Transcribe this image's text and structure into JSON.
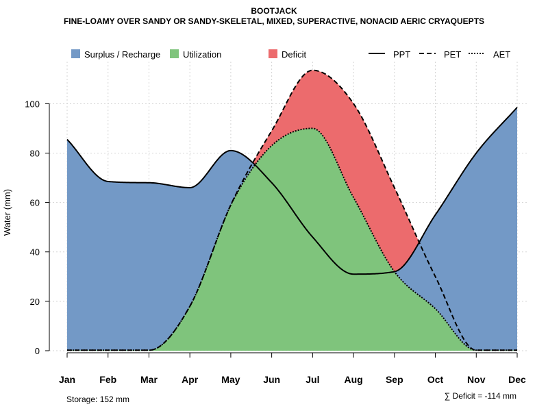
{
  "titles": {
    "main": "BOOTJACK",
    "subtitle": "FINE-LOAMY OVER SANDY OR SANDY-SKELETAL, MIXED, SUPERACTIVE, NONACID AERIC CRYAQUEPTS"
  },
  "colors": {
    "surplus": "#7399c6",
    "utilization": "#7fc47c",
    "deficit": "#ec6b6d",
    "grid": "#d3d3d3"
  },
  "chart_data": {
    "type": "area",
    "title": "BOOTJACK",
    "ylabel": "Water (mm)",
    "xlabel": "",
    "ylim": [
      0,
      117
    ],
    "yticks": [
      0,
      20,
      40,
      60,
      80,
      100
    ],
    "grid": true,
    "categories": [
      "Jan",
      "Feb",
      "Mar",
      "Apr",
      "May",
      "Jun",
      "Jul",
      "Aug",
      "Sep",
      "Oct",
      "Nov",
      "Dec"
    ],
    "series": [
      {
        "name": "PPT",
        "values": [
          85.5,
          68.5,
          68,
          66,
          81,
          68,
          46,
          31,
          32,
          55,
          80,
          98.5
        ]
      },
      {
        "name": "PET",
        "values": [
          0.2,
          0.2,
          0.2,
          18,
          59,
          89,
          113.5,
          100,
          66,
          30,
          0.2,
          0.2
        ]
      },
      {
        "name": "AET",
        "values": [
          0.2,
          0.2,
          0.2,
          18,
          59,
          83,
          90,
          62,
          32,
          17,
          0.2,
          0.2
        ]
      }
    ],
    "legend": {
      "position": "top",
      "items": [
        {
          "label": "Surplus / Recharge",
          "kind": "fill",
          "key": "surplus"
        },
        {
          "label": "Utilization",
          "kind": "fill",
          "key": "utilization"
        },
        {
          "label": "Deficit",
          "kind": "fill",
          "key": "deficit"
        },
        {
          "label": "PPT",
          "kind": "line",
          "dash": "solid"
        },
        {
          "label": "PET",
          "kind": "line",
          "dash": "dashed"
        },
        {
          "label": "AET",
          "kind": "line",
          "dash": "dotted"
        }
      ]
    },
    "annotations": {
      "storage": "Storage: 152 mm",
      "deficit": "∑ Deficit = -114 mm"
    }
  }
}
